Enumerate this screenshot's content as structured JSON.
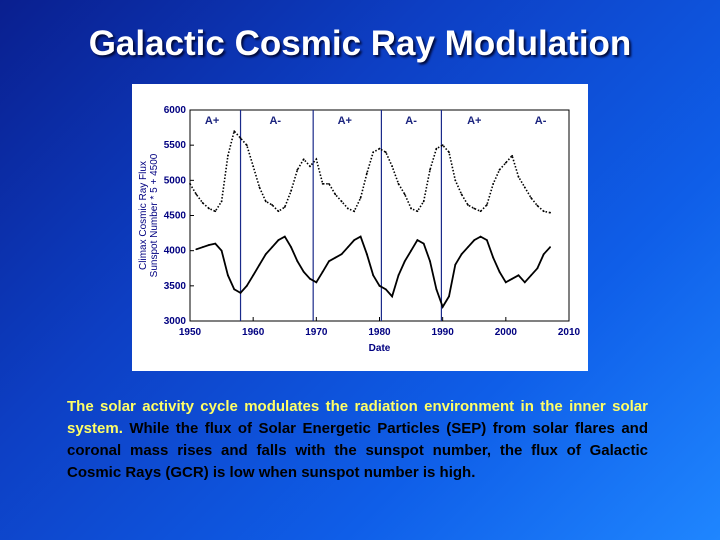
{
  "slide": {
    "title": "Galactic Cosmic Ray Modulation",
    "caption_lead": "The solar activity cycle modulates the radiation environment in the inner solar system.",
    "caption_rest": "While the flux of Solar Energetic Particles (SEP) from solar flares and coronal mass rises and falls with the sunspot number, the flux of Galactic Cosmic Rays (GCR) is low when sunspot number is high."
  },
  "colors": {
    "background": "#0d3fc4",
    "title": "#ffffff",
    "caption_lead": "#ffff66",
    "caption_rest": "#000000",
    "axis_text": "#000080",
    "polarity_text": "#1a237e",
    "series": "#000000"
  },
  "chart_data": {
    "type": "line",
    "title": "",
    "xlabel": "Date",
    "ylabel": "Climax Cosmic Ray Flux",
    "ylabel2": "Sunspot Number * 5 + 4500",
    "xlim": [
      1950,
      2010
    ],
    "ylim": [
      3000,
      6000
    ],
    "x_ticks": [
      1950,
      1960,
      1970,
      1980,
      1990,
      2000,
      2010
    ],
    "y_ticks": [
      3000,
      3500,
      4000,
      4500,
      5000,
      5500,
      6000
    ],
    "cycle_boundaries": [
      1958,
      1969.5,
      1980.3,
      1989.8
    ],
    "polarity_labels": [
      {
        "year": 1953.5,
        "label": "A+"
      },
      {
        "year": 1963.5,
        "label": "A-"
      },
      {
        "year": 1974.5,
        "label": "A+"
      },
      {
        "year": 1985,
        "label": "A-"
      },
      {
        "year": 1995,
        "label": "A+"
      },
      {
        "year": 2005.5,
        "label": "A-"
      }
    ],
    "series": [
      {
        "key": "sunspot",
        "style": "dotted",
        "x": [
          1950,
          1951,
          1952,
          1953,
          1954,
          1955,
          1956,
          1957,
          1958,
          1959,
          1960,
          1961,
          1962,
          1963,
          1964,
          1965,
          1966,
          1967,
          1968,
          1969,
          1970,
          1971,
          1972,
          1973,
          1974,
          1975,
          1976,
          1977,
          1978,
          1979,
          1980,
          1981,
          1982,
          1983,
          1984,
          1985,
          1986,
          1987,
          1988,
          1989,
          1990,
          1991,
          1992,
          1993,
          1994,
          1995,
          1996,
          1997,
          1998,
          1999,
          2000,
          2001,
          2002,
          2003,
          2004,
          2005,
          2006,
          2007
        ],
        "y": [
          4950,
          4800,
          4680,
          4600,
          4560,
          4700,
          5350,
          5700,
          5600,
          5500,
          5200,
          4900,
          4700,
          4650,
          4560,
          4620,
          4850,
          5150,
          5300,
          5200,
          5300,
          4950,
          4950,
          4800,
          4700,
          4600,
          4560,
          4750,
          5100,
          5400,
          5450,
          5400,
          5200,
          4950,
          4800,
          4600,
          4560,
          4700,
          5150,
          5450,
          5500,
          5400,
          5000,
          4800,
          4650,
          4600,
          4560,
          4650,
          4950,
          5150,
          5250,
          5350,
          5050,
          4900,
          4750,
          4640,
          4560,
          4540
        ]
      },
      {
        "key": "cosmic_ray",
        "style": "solid",
        "x": [
          1951,
          1952,
          1953,
          1954,
          1955,
          1956,
          1957,
          1958,
          1959,
          1960,
          1961,
          1962,
          1963,
          1964,
          1965,
          1966,
          1967,
          1968,
          1969,
          1970,
          1971,
          1972,
          1973,
          1974,
          1975,
          1976,
          1977,
          1978,
          1979,
          1980,
          1981,
          1982,
          1983,
          1984,
          1985,
          1986,
          1987,
          1988,
          1989,
          1990,
          1991,
          1992,
          1993,
          1994,
          1995,
          1996,
          1997,
          1998,
          1999,
          2000,
          2001,
          2002,
          2003,
          2004,
          2005,
          2006,
          2007
        ],
        "y": [
          4020,
          4050,
          4080,
          4100,
          4000,
          3650,
          3450,
          3400,
          3500,
          3650,
          3800,
          3950,
          4050,
          4150,
          4200,
          4050,
          3850,
          3700,
          3600,
          3550,
          3700,
          3850,
          3900,
          3950,
          4050,
          4150,
          4200,
          3950,
          3650,
          3500,
          3450,
          3350,
          3650,
          3850,
          4000,
          4150,
          4100,
          3850,
          3450,
          3200,
          3350,
          3800,
          3950,
          4050,
          4150,
          4200,
          4150,
          3900,
          3700,
          3550,
          3600,
          3650,
          3550,
          3650,
          3750,
          3950,
          4050
        ]
      }
    ]
  }
}
